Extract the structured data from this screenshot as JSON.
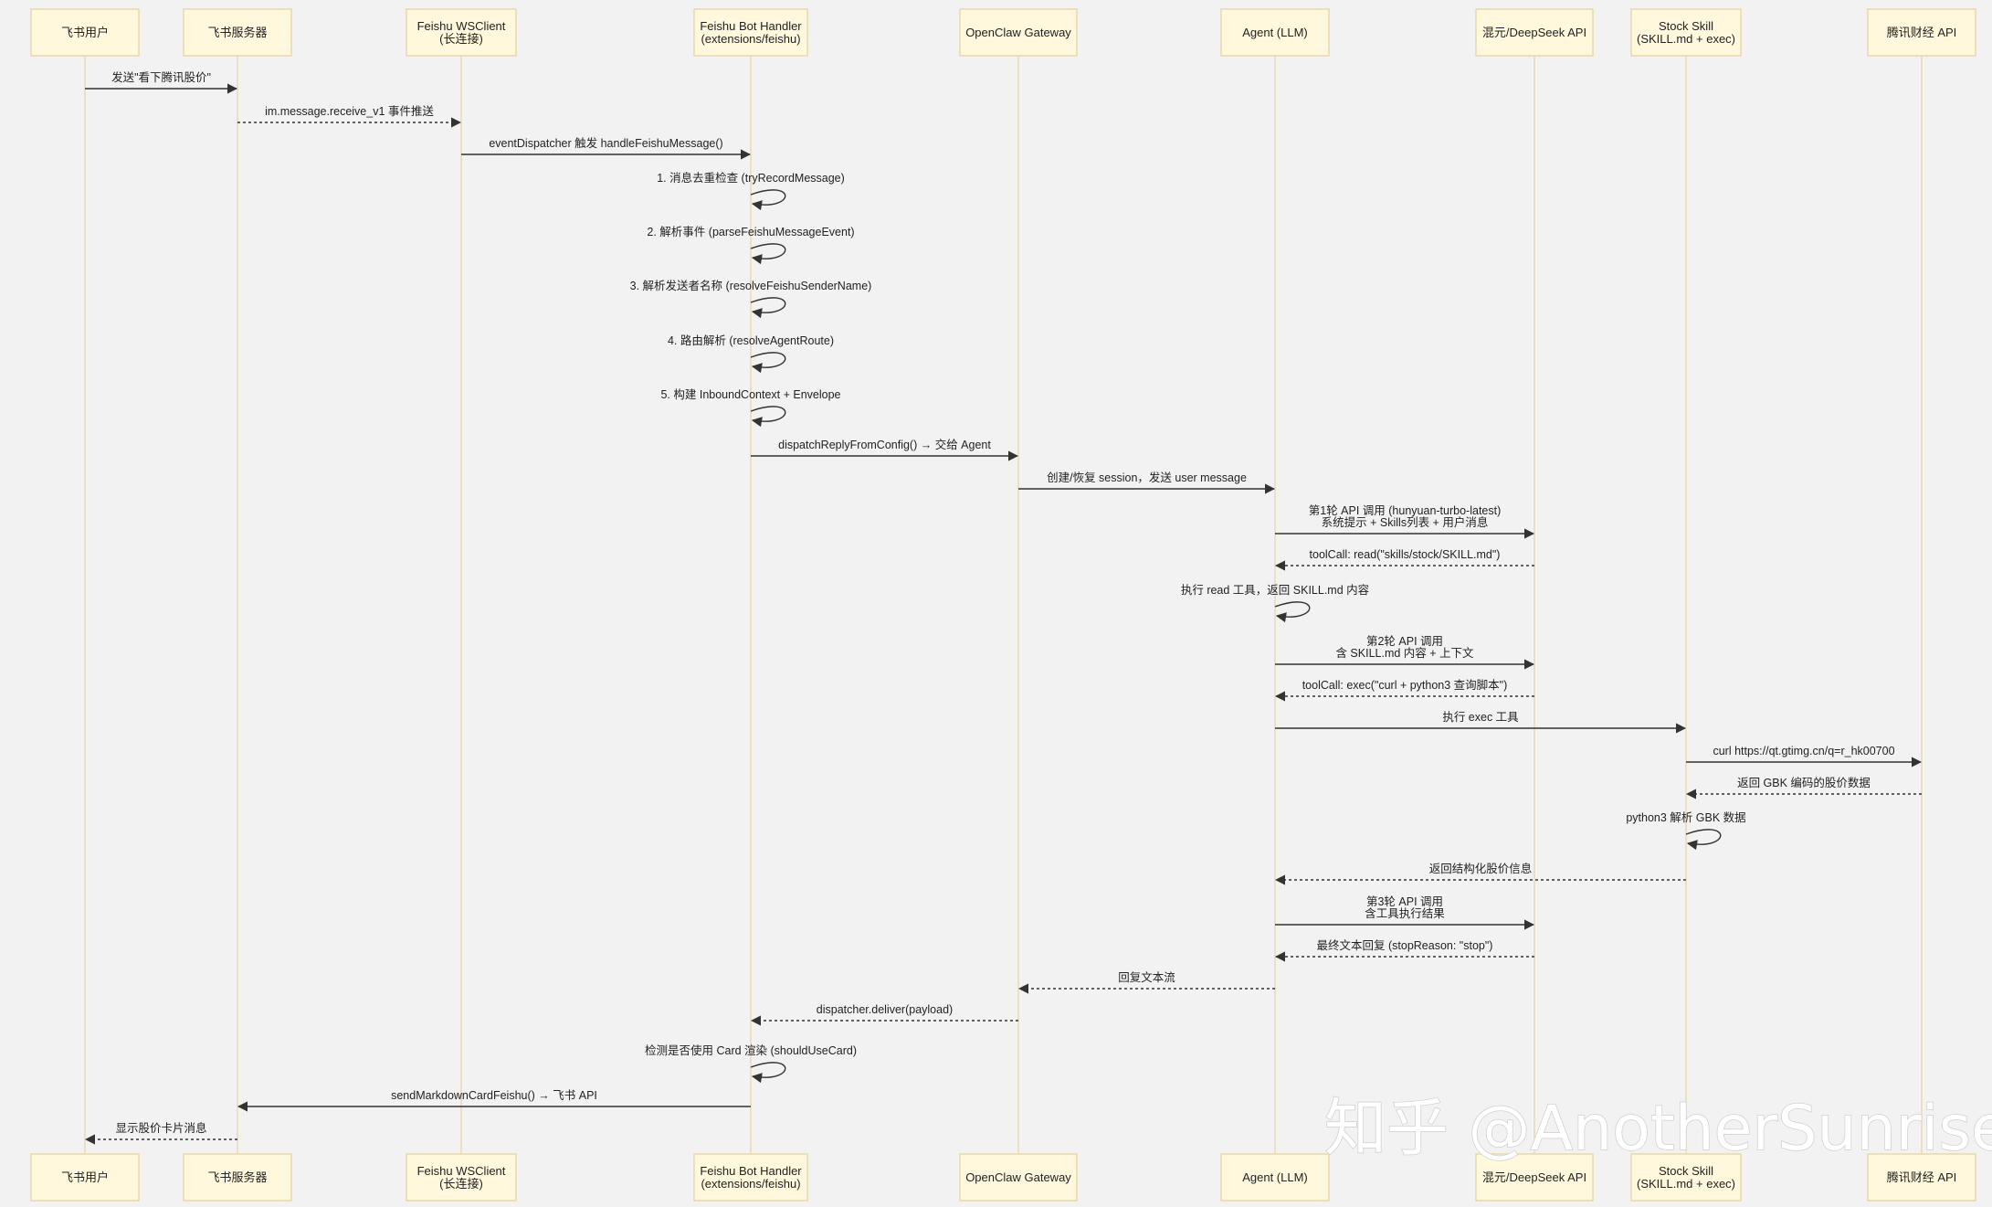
{
  "actors": [
    {
      "id": "user",
      "lines": [
        "飞书用户"
      ]
    },
    {
      "id": "server",
      "lines": [
        "飞书服务器"
      ]
    },
    {
      "id": "ws",
      "lines": [
        "Feishu WSClient",
        "(长连接)"
      ]
    },
    {
      "id": "bot",
      "lines": [
        "Feishu Bot Handler",
        "(extensions/feishu)"
      ]
    },
    {
      "id": "gw",
      "lines": [
        "OpenClaw Gateway"
      ]
    },
    {
      "id": "agent",
      "lines": [
        "Agent (LLM)"
      ]
    },
    {
      "id": "llm",
      "lines": [
        "混元/DeepSeek API"
      ]
    },
    {
      "id": "skill",
      "lines": [
        "Stock Skill",
        "(SKILL.md + exec)"
      ]
    },
    {
      "id": "stockapi",
      "lines": [
        "腾讯财经 API"
      ]
    }
  ],
  "messages": [
    {
      "from": "user",
      "to": "server",
      "dashed": false,
      "lines": [
        "发送\"看下腾讯股价\""
      ]
    },
    {
      "from": "server",
      "to": "ws",
      "dashed": true,
      "lines": [
        "im.message.receive_v1 事件推送"
      ]
    },
    {
      "from": "ws",
      "to": "bot",
      "dashed": false,
      "lines": [
        "eventDispatcher 触发 handleFeishuMessage()"
      ]
    },
    {
      "from": "bot",
      "to": "bot",
      "dashed": false,
      "lines": [
        "1. 消息去重检查 (tryRecordMessage)"
      ]
    },
    {
      "from": "bot",
      "to": "bot",
      "dashed": false,
      "lines": [
        "2. 解析事件 (parseFeishuMessageEvent)"
      ]
    },
    {
      "from": "bot",
      "to": "bot",
      "dashed": false,
      "lines": [
        "3. 解析发送者名称 (resolveFeishuSenderName)"
      ]
    },
    {
      "from": "bot",
      "to": "bot",
      "dashed": false,
      "lines": [
        "4. 路由解析 (resolveAgentRoute)"
      ]
    },
    {
      "from": "bot",
      "to": "bot",
      "dashed": false,
      "lines": [
        "5. 构建 InboundContext + Envelope"
      ]
    },
    {
      "from": "bot",
      "to": "gw",
      "dashed": false,
      "lines": [
        "dispatchReplyFromConfig() → 交给 Agent"
      ]
    },
    {
      "from": "gw",
      "to": "agent",
      "dashed": false,
      "lines": [
        "创建/恢复 session，发送 user message"
      ]
    },
    {
      "from": "agent",
      "to": "llm",
      "dashed": false,
      "lines": [
        "第1轮 API 调用 (hunyuan-turbo-latest)",
        "系统提示 + Skills列表 + 用户消息"
      ]
    },
    {
      "from": "llm",
      "to": "agent",
      "dashed": true,
      "lines": [
        "toolCall: read(\"skills/stock/SKILL.md\")"
      ]
    },
    {
      "from": "agent",
      "to": "agent",
      "dashed": false,
      "lines": [
        "执行 read 工具，返回 SKILL.md 内容"
      ]
    },
    {
      "from": "agent",
      "to": "llm",
      "dashed": false,
      "lines": [
        "第2轮 API 调用",
        "含 SKILL.md 内容 + 上下文"
      ]
    },
    {
      "from": "llm",
      "to": "agent",
      "dashed": true,
      "lines": [
        "toolCall: exec(\"curl + python3 查询脚本\")"
      ]
    },
    {
      "from": "agent",
      "to": "skill",
      "dashed": false,
      "lines": [
        "执行 exec 工具"
      ]
    },
    {
      "from": "skill",
      "to": "stockapi",
      "dashed": false,
      "lines": [
        "curl https://qt.gtimg.cn/q=r_hk00700"
      ]
    },
    {
      "from": "stockapi",
      "to": "skill",
      "dashed": true,
      "lines": [
        "返回 GBK 编码的股价数据"
      ]
    },
    {
      "from": "skill",
      "to": "skill",
      "dashed": false,
      "lines": [
        "python3 解析 GBK 数据"
      ]
    },
    {
      "from": "skill",
      "to": "agent",
      "dashed": true,
      "lines": [
        "返回结构化股价信息"
      ]
    },
    {
      "from": "agent",
      "to": "llm",
      "dashed": false,
      "lines": [
        "第3轮 API 调用",
        "含工具执行结果"
      ]
    },
    {
      "from": "llm",
      "to": "agent",
      "dashed": true,
      "lines": [
        "最终文本回复 (stopReason: \"stop\")"
      ]
    },
    {
      "from": "agent",
      "to": "gw",
      "dashed": true,
      "lines": [
        "回复文本流"
      ]
    },
    {
      "from": "gw",
      "to": "bot",
      "dashed": true,
      "lines": [
        "dispatcher.deliver(payload)"
      ]
    },
    {
      "from": "bot",
      "to": "bot",
      "dashed": false,
      "lines": [
        "检测是否使用 Card 渲染 (shouldUseCard)"
      ]
    },
    {
      "from": "bot",
      "to": "server",
      "dashed": false,
      "lines": [
        "sendMarkdownCardFeishu() → 飞书 API"
      ]
    },
    {
      "from": "server",
      "to": "user",
      "dashed": true,
      "lines": [
        "显示股价卡片消息"
      ]
    }
  ],
  "watermark": "知乎 @AnotherSunrise"
}
